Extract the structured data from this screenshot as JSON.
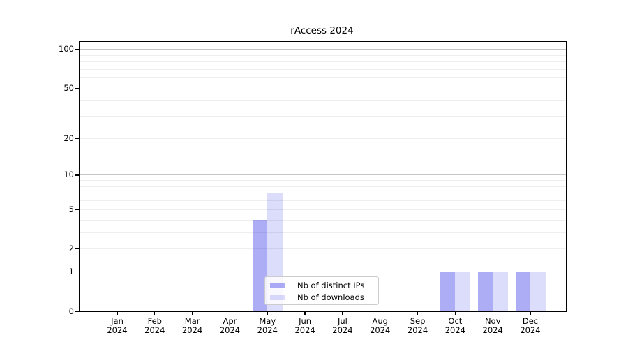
{
  "chart_data": {
    "type": "bar",
    "title": "rAccess 2024",
    "categories": [
      "Jan",
      "Feb",
      "Mar",
      "Apr",
      "May",
      "Jun",
      "Jul",
      "Aug",
      "Sep",
      "Oct",
      "Nov",
      "Dec"
    ],
    "category_year": "2024",
    "series": [
      {
        "name": "Nb of distinct IPs",
        "color": "rgba(20,20,230,0.35)",
        "values": [
          0,
          0,
          0,
          0,
          4,
          0,
          0,
          0,
          0,
          1,
          1,
          1
        ]
      },
      {
        "name": "Nb of downloads",
        "color": "rgba(20,20,230,0.15)",
        "values": [
          0,
          0,
          0,
          0,
          7,
          0,
          0,
          0,
          0,
          1,
          1,
          1
        ]
      }
    ],
    "xlabel": "",
    "ylabel": "",
    "yscale": "log1p",
    "ylim": [
      0,
      114
    ],
    "yticks_labeled": [
      "0",
      "1",
      "2",
      "5",
      "10",
      "20",
      "50",
      "100"
    ],
    "grid_major_values": [
      1,
      10,
      100
    ],
    "grid_minor_values": [
      2,
      3,
      4,
      5,
      6,
      7,
      8,
      9,
      20,
      30,
      40,
      60,
      70,
      80,
      90
    ],
    "grid": "on",
    "legend_position": "inside lower center-left"
  },
  "colors": {
    "axis": "#000000",
    "grid_major": "#c6c6c6",
    "grid_minor": "#eeeeee",
    "legend_border": "#cccccc",
    "bar_distinct_ips": "rgba(20,20,230,0.35)",
    "bar_downloads": "rgba(20,20,230,0.15)"
  }
}
